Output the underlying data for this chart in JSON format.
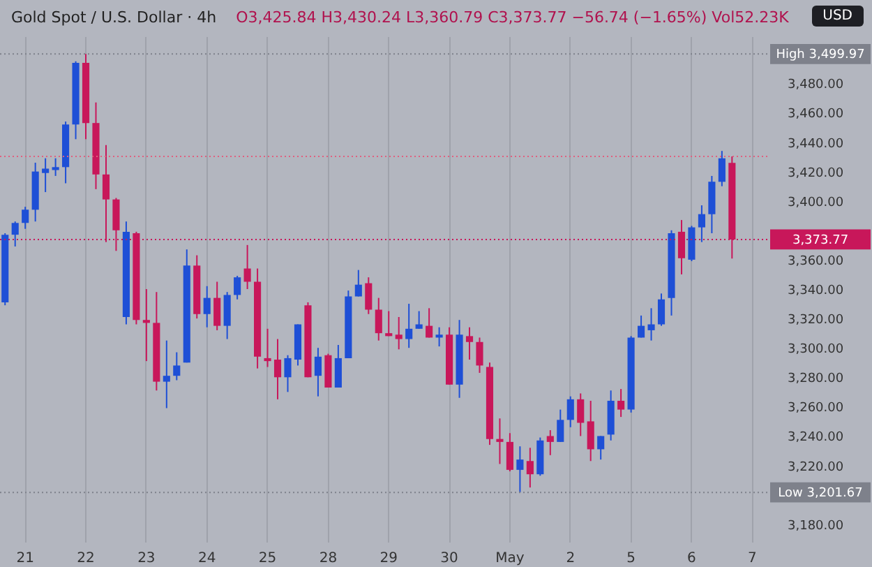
{
  "chart_data": {
    "type": "candlestick",
    "title": "Gold Spot / U.S. Dollar · 4h",
    "subtitle": "O3,425.84 H3,430.24 L3,360.79 C3,373.77 −56.74 (−1.65%) Vol52.23K",
    "annotations": [
      "USD"
    ],
    "categories": [
      null,
      null,
      "21",
      null,
      null,
      null,
      null,
      null,
      "22",
      null,
      null,
      null,
      null,
      null,
      "23",
      null,
      null,
      null,
      null,
      null,
      "24",
      null,
      null,
      null,
      null,
      null,
      "25",
      null,
      null,
      null,
      null,
      null,
      "28",
      null,
      null,
      null,
      null,
      null,
      "29",
      null,
      null,
      null,
      null,
      null,
      "30",
      null,
      null,
      null,
      null,
      null,
      "May",
      null,
      null,
      null,
      null,
      null,
      "2",
      null,
      null,
      null,
      null,
      null,
      "5",
      null,
      null,
      null,
      null,
      null,
      "6",
      null,
      null,
      null,
      null,
      null,
      "7",
      null
    ],
    "ohlc": [
      [
        3331,
        3378,
        3329,
        3377
      ],
      [
        3377,
        3386,
        3369,
        3385
      ],
      [
        3385,
        3396,
        3381,
        3394
      ],
      [
        3394,
        3426,
        3386,
        3420
      ],
      [
        3419,
        3429,
        3406,
        3422
      ],
      [
        3421,
        3429,
        3417,
        3423
      ],
      [
        3423,
        3454,
        3412,
        3452
      ],
      [
        3452,
        3495,
        3442,
        3494
      ],
      [
        3494,
        3499.97,
        3442,
        3453
      ],
      [
        3453,
        3467,
        3408,
        3418
      ],
      [
        3418,
        3438,
        3372,
        3401
      ],
      [
        3401,
        3402,
        3366,
        3380
      ],
      [
        3321,
        3386,
        3316,
        3379
      ],
      [
        3378,
        3379,
        3316,
        3319
      ],
      [
        3319,
        3340,
        3291,
        3317
      ],
      [
        3317,
        3338,
        3271,
        3277
      ],
      [
        3277,
        3305,
        3259,
        3281
      ],
      [
        3281,
        3297,
        3278,
        3288
      ],
      [
        3290,
        3367,
        3290,
        3356
      ],
      [
        3356,
        3363,
        3320,
        3323
      ],
      [
        3323,
        3342,
        3314,
        3334
      ],
      [
        3334,
        3345,
        3312,
        3315
      ],
      [
        3315,
        3338,
        3306,
        3336
      ],
      [
        3336,
        3349,
        3333,
        3348
      ],
      [
        3354,
        3370,
        3340,
        3345
      ],
      [
        3345,
        3354,
        3286,
        3294
      ],
      [
        3293,
        3313,
        3287,
        3291
      ],
      [
        3292,
        3306,
        3265,
        3280
      ],
      [
        3280,
        3295,
        3270,
        3293
      ],
      [
        3292,
        3316,
        3288,
        3316
      ],
      [
        3329,
        3331,
        3280,
        3280
      ],
      [
        3281,
        3300,
        3267,
        3294
      ],
      [
        3295,
        3296,
        3273,
        3273
      ],
      [
        3273,
        3302,
        3273,
        3293
      ],
      [
        3293,
        3339,
        3293,
        3335
      ],
      [
        3335,
        3353,
        3335,
        3343
      ],
      [
        3344,
        3348,
        3323,
        3326
      ],
      [
        3326,
        3334,
        3305,
        3310
      ],
      [
        3310,
        3325,
        3308,
        3308
      ],
      [
        3309,
        3321,
        3299,
        3306
      ],
      [
        3306,
        3330,
        3300,
        3313
      ],
      [
        3313,
        3325,
        3313,
        3316
      ],
      [
        3315,
        3327,
        3307,
        3307
      ],
      [
        3307,
        3314,
        3301,
        3309
      ],
      [
        3309,
        3314,
        3275,
        3275
      ],
      [
        3275,
        3319,
        3266,
        3309
      ],
      [
        3308,
        3314,
        3292,
        3304
      ],
      [
        3304,
        3307,
        3283,
        3288
      ],
      [
        3287,
        3290,
        3234,
        3238
      ],
      [
        3238,
        3252,
        3221,
        3236
      ],
      [
        3236,
        3242,
        3216,
        3217
      ],
      [
        3217,
        3233,
        3201.67,
        3224
      ],
      [
        3223,
        3232,
        3205,
        3214
      ],
      [
        3214,
        3239,
        3213,
        3237
      ],
      [
        3240,
        3244,
        3227,
        3236
      ],
      [
        3236,
        3258,
        3236,
        3251
      ],
      [
        3251,
        3267,
        3246,
        3265
      ],
      [
        3265,
        3269,
        3240,
        3249
      ],
      [
        3250,
        3264,
        3223,
        3231
      ],
      [
        3231,
        3240,
        3224,
        3240
      ],
      [
        3241,
        3271,
        3237,
        3264
      ],
      [
        3264,
        3272,
        3253,
        3258
      ],
      [
        3258,
        3308,
        3256,
        3307
      ],
      [
        3307,
        3322,
        3307,
        3315
      ],
      [
        3312,
        3327,
        3305,
        3316
      ],
      [
        3316,
        3337,
        3315,
        3333
      ],
      [
        3334,
        3380,
        3322,
        3378
      ],
      [
        3379,
        3387,
        3350,
        3361
      ],
      [
        3360,
        3383,
        3359,
        3382
      ],
      [
        3382,
        3397,
        3372,
        3391
      ],
      [
        3391,
        3417,
        3378,
        3413
      ],
      [
        3413,
        3434,
        3410,
        3429
      ],
      [
        3425.84,
        3430.24,
        3360.79,
        3373.77
      ],
      null,
      null,
      null
    ],
    "colors": [
      "#1e4fd6",
      "#1e4fd6",
      "#1e4fd6",
      "#1e4fd6",
      "#1e4fd6",
      "#1e4fd6",
      "#1e4fd6",
      "#1e4fd6",
      "#c8175a",
      "#c8175a",
      "#c8175a",
      "#c8175a",
      "#1e4fd6",
      "#c8175a",
      "#c8175a",
      "#c8175a",
      "#1e4fd6",
      "#1e4fd6",
      "#1e4fd6",
      "#c8175a",
      "#1e4fd6",
      "#c8175a",
      "#1e4fd6",
      "#1e4fd6",
      "#c8175a",
      "#c8175a",
      "#c8175a",
      "#c8175a",
      "#1e4fd6",
      "#1e4fd6",
      "#c8175a",
      "#1e4fd6",
      "#c8175a",
      "#1e4fd6",
      "#1e4fd6",
      "#1e4fd6",
      "#c8175a",
      "#c8175a",
      "#c8175a",
      "#c8175a",
      "#1e4fd6",
      "#1e4fd6",
      "#c8175a",
      "#1e4fd6",
      "#c8175a",
      "#1e4fd6",
      "#c8175a",
      "#c8175a",
      "#c8175a",
      "#c8175a",
      "#c8175a",
      "#1e4fd6",
      "#c8175a",
      "#1e4fd6",
      "#c8175a",
      "#1e4fd6",
      "#1e4fd6",
      "#c8175a",
      "#c8175a",
      "#1e4fd6",
      "#1e4fd6",
      "#c8175a",
      "#1e4fd6",
      "#1e4fd6",
      "#1e4fd6",
      "#1e4fd6",
      "#1e4fd6",
      "#c8175a",
      "#1e4fd6",
      "#1e4fd6",
      "#1e4fd6",
      "#1e4fd6",
      "#c8175a",
      null,
      null,
      null
    ],
    "ylim": [
      3168,
      3512
    ],
    "yticks": [
      {
        "value": 3180,
        "label": "3,180.00"
      },
      {
        "value": 3220,
        "label": "3,220.00"
      },
      {
        "value": 3240,
        "label": "3,240.00"
      },
      {
        "value": 3260,
        "label": "3,260.00"
      },
      {
        "value": 3280,
        "label": "3,280.00"
      },
      {
        "value": 3300,
        "label": "3,300.00"
      },
      {
        "value": 3320,
        "label": "3,320.00"
      },
      {
        "value": 3340,
        "label": "3,340.00"
      },
      {
        "value": 3360,
        "label": "3,360.00"
      },
      {
        "value": 3400,
        "label": "3,400.00"
      },
      {
        "value": 3420,
        "label": "3,420.00"
      },
      {
        "value": 3440,
        "label": "3,440.00"
      },
      {
        "value": 3460,
        "label": "3,460.00"
      },
      {
        "value": 3480,
        "label": "3,480.00"
      }
    ],
    "ref_lines": [
      {
        "axis": "y",
        "value": 3499.97,
        "label": "High 3,499.97",
        "color": "#7e818b",
        "line_style": "dotted"
      },
      {
        "axis": "y",
        "value": 3201.67,
        "label": "Low 3,201.67",
        "color": "#7e818b",
        "line_style": "dotted"
      },
      {
        "axis": "y",
        "value": 3430.24,
        "color": "#e0607f",
        "line_style": "dotted"
      },
      {
        "axis": "y",
        "value": 3373.77,
        "label": "3,373.77",
        "color": "#c8175a",
        "line_style": "dotted"
      }
    ],
    "grid": "x"
  }
}
